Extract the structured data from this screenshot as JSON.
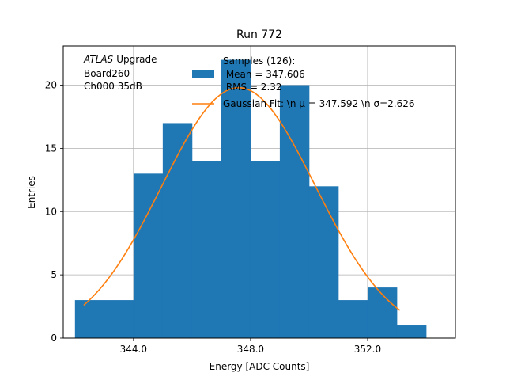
{
  "chart_data": {
    "type": "histogram",
    "title": "Run 772",
    "xlabel": "Energy [ADC Counts]",
    "ylabel": "Entries",
    "xlim": [
      341.6,
      355.0
    ],
    "ylim": [
      0,
      23.1
    ],
    "xticks": [
      344.0,
      348.0,
      352.0
    ],
    "xtick_labels": [
      "344.0",
      "348.0",
      "352.0"
    ],
    "yticks": [
      0,
      5,
      10,
      15,
      20
    ],
    "ytick_labels": [
      "0",
      "5",
      "10",
      "15",
      "20"
    ],
    "grid": true,
    "annotation": {
      "atlas": "ATLAS",
      "upgrade": "Upgrade",
      "line2": "Board260",
      "line3": "Ch000 35dB"
    },
    "histogram": {
      "name": "Samples",
      "color": "#1f77b4",
      "bins": [
        {
          "x0": 342.0,
          "x1": 343.0,
          "count": 3
        },
        {
          "x0": 343.0,
          "x1": 344.0,
          "count": 3
        },
        {
          "x0": 344.0,
          "x1": 345.0,
          "count": 13
        },
        {
          "x0": 345.0,
          "x1": 346.0,
          "count": 17
        },
        {
          "x0": 346.0,
          "x1": 347.0,
          "count": 14
        },
        {
          "x0": 347.0,
          "x1": 348.0,
          "count": 22
        },
        {
          "x0": 348.0,
          "x1": 349.0,
          "count": 14
        },
        {
          "x0": 349.0,
          "x1": 350.0,
          "count": 20
        },
        {
          "x0": 350.0,
          "x1": 351.0,
          "count": 12
        },
        {
          "x0": 351.0,
          "x1": 352.0,
          "count": 3
        },
        {
          "x0": 352.0,
          "x1": 353.0,
          "count": 4
        },
        {
          "x0": 353.0,
          "x1": 354.0,
          "count": 1
        }
      ]
    },
    "fit": {
      "name": "Gaussian Fit",
      "color": "#ff7f0e",
      "mu": 347.592,
      "sigma": 2.626,
      "amplitude": 19.8,
      "x_start": 342.3,
      "x_end": 353.1
    },
    "legend": {
      "location": "top-right",
      "entries": [
        {
          "label_lines": [
            "Samples (126):",
            " Mean = 347.606",
            " RMS = 2.32"
          ],
          "kind": "patch",
          "color": "#1f77b4"
        },
        {
          "label_lines": [
            "Gaussian Fit: \\n μ = 347.592 \\n σ=2.626"
          ],
          "kind": "line",
          "color": "#ff7f0e"
        }
      ]
    }
  }
}
